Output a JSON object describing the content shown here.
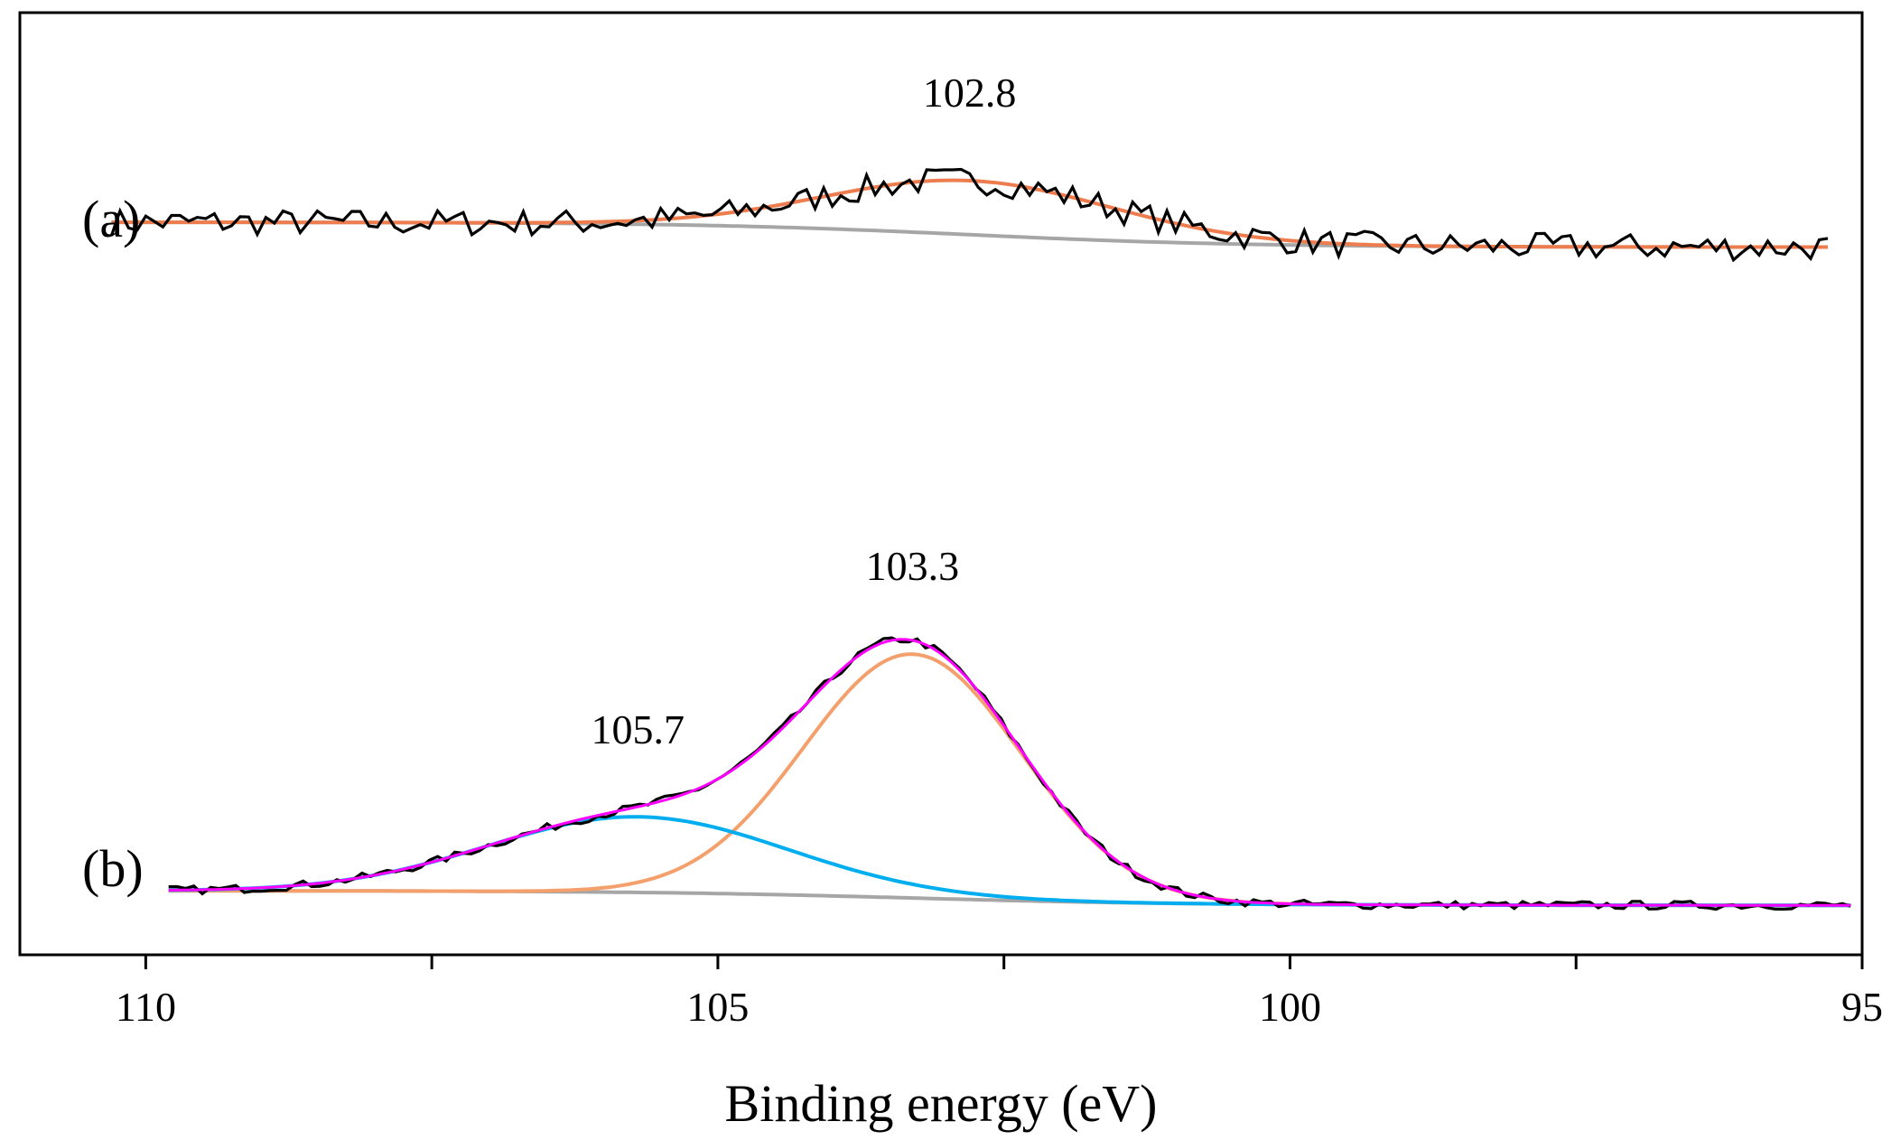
{
  "chart_data": {
    "type": "line",
    "xlabel": "Binding energy (eV)",
    "ylabel": "",
    "xlim": [
      111.1,
      95
    ],
    "x_reversed": true,
    "x_ticks": [
      110,
      105,
      100,
      95
    ],
    "x_tick_labels": [
      "110",
      "105",
      "100",
      "95"
    ],
    "x_minor_ticks": [
      107.5,
      102.5,
      97.5
    ],
    "y_tick_labels": false,
    "grid": false,
    "legend": "none",
    "colors": {
      "raw": "#000000",
      "background": "#a6a6a6",
      "fit_a": "#ed7d4f",
      "envelope_b": "#ff00ff",
      "peak_103_3": "#f4a06c",
      "peak_105_7": "#00aeef"
    },
    "panels": [
      {
        "label": "(a)",
        "x_range": [
          110.3,
          95.3
        ],
        "annotations": [
          {
            "text": "102.8",
            "x": 102.8
          }
        ],
        "background": {
          "start": 0.0,
          "end": -0.12
        },
        "peaks": [
          {
            "series": "fit",
            "center": 102.8,
            "sigma": 1.25,
            "height": 0.26
          }
        ]
      },
      {
        "label": "(b)",
        "x_range": [
          109.8,
          95.1
        ],
        "annotations": [
          {
            "text": "103.3",
            "x": 103.3
          },
          {
            "text": "105.7",
            "x": 105.7
          }
        ],
        "background": {
          "start": 0.0,
          "end": -0.06
        },
        "peaks": [
          {
            "series": "peak_103_3",
            "center": 103.3,
            "sigma": 0.95,
            "height": 1.0
          },
          {
            "series": "peak_105_7",
            "center": 105.7,
            "sigma": 1.3,
            "height": 0.31
          }
        ]
      }
    ]
  }
}
